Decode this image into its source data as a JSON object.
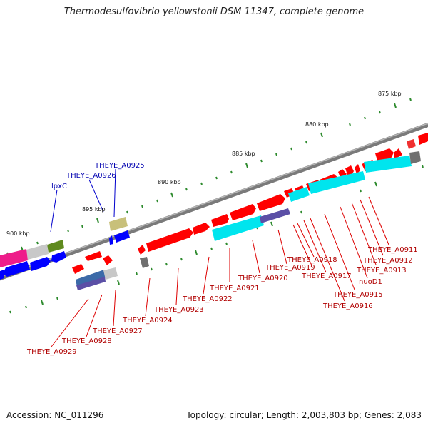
{
  "title": "Thermodesulfovibrio yellowstonii DSM 11347, complete genome",
  "footer": {
    "accession": "Accession: NC_011296",
    "topology": "Topology: circular; Length: 2,003,803 bp; Genes: 2,083"
  },
  "ruler": {
    "kbp_875": "875 kbp",
    "kbp_880": "880 kbp",
    "kbp_885": "885 kbp",
    "kbp_890": "890 kbp",
    "kbp_895": "895 kbp",
    "kbp_900": "900 kbp"
  },
  "gene_labels": {
    "A0911": "THEYE_A0911",
    "A0912": "THEYE_A0912",
    "A0913": "THEYE_A0913",
    "nuoD1": "nuoD1",
    "A0915": "THEYE_A0915",
    "A0916": "THEYE_A0916",
    "A0917": "THEYE_A0917",
    "A0918": "THEYE_A0918",
    "A0919": "THEYE_A0919",
    "A0920": "THEYE_A0920",
    "A0921": "THEYE_A0921",
    "A0922": "THEYE_A0922",
    "A0923": "THEYE_A0923",
    "A0924": "THEYE_A0924",
    "A0927": "THEYE_A0927",
    "A0928": "THEYE_A0928",
    "A0929": "THEYE_A0929",
    "A0925": "THEYE_A0925",
    "A0926": "THEYE_A0926",
    "lpxC": "lpxC"
  },
  "colors": {
    "red_label": "#b00000",
    "blue_label": "#0000b0",
    "cds_forward": "#ff0000",
    "cds_reverse": "#0000ff",
    "rna_cyan": "#00e5ee",
    "tick_green": "#2e8b2e",
    "backbone": "#808080"
  }
}
